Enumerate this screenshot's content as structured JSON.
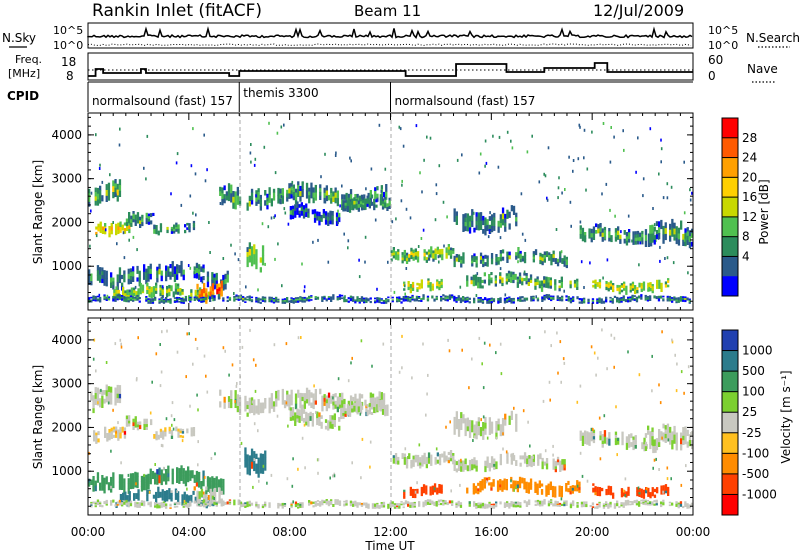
{
  "header": {
    "station": "Rankin Inlet (fitACF)",
    "beam": "Beam 11",
    "date": "12/Jul/2009"
  },
  "nsky": {
    "label": "N.Sky",
    "right_label": "N.Search",
    "left_ticks": [
      "10^5",
      "10^0"
    ],
    "right_ticks": [
      "10^5",
      "10^0"
    ]
  },
  "freq": {
    "label_line1": "Freq.",
    "label_line2": "[MHz]",
    "left_ticks": [
      "18",
      "8"
    ],
    "right_ticks": [
      "60",
      "0"
    ],
    "right_label": "Nave"
  },
  "cpid": {
    "label": "CPID",
    "segments": [
      {
        "start_h": 0,
        "end_h": 6,
        "name": "normalsound (fast) 157"
      },
      {
        "start_h": 6,
        "end_h": 12,
        "name": "themis 3300"
      },
      {
        "start_h": 12,
        "end_h": 24,
        "name": "normalsound (fast) 157"
      }
    ]
  },
  "xaxis": {
    "label": "Time UT",
    "ticks": [
      "00:00",
      "04:00",
      "08:00",
      "12:00",
      "16:00",
      "20:00",
      "00:00"
    ]
  },
  "power_panel": {
    "ylabel": "Slant Range [km]",
    "yticks": [
      "4000",
      "3000",
      "2000",
      "1000"
    ],
    "colorbar_label": "Power [dB]",
    "colorbar_ticks": [
      "28",
      "24",
      "20",
      "16",
      "12",
      "8",
      "4"
    ],
    "colorbar_colors": [
      "#ff0000",
      "#ff5a00",
      "#ffa000",
      "#ffd000",
      "#c8d800",
      "#50c050",
      "#2c8c5c",
      "#2a5a8a",
      "#0000ff"
    ]
  },
  "velocity_panel": {
    "ylabel": "Slant Range [km]",
    "yticks": [
      "4000",
      "3000",
      "2000",
      "1000"
    ],
    "colorbar_label": "Velocity [m s⁻¹]",
    "colorbar_ticks": [
      "1000",
      "500",
      "100",
      "25",
      "-25",
      "-100",
      "-500",
      "-1000"
    ],
    "colorbar_colors": [
      "#2040b0",
      "#2c7c8c",
      "#3c9c5c",
      "#7cd030",
      "#c8c8c0",
      "#ffc020",
      "#ff8c00",
      "#ff4000",
      "#ff0000"
    ]
  },
  "chart_data": {
    "type": "heatmap",
    "x_unit": "hours UT",
    "xlim": [
      0,
      24
    ],
    "ylim": [
      0,
      4500
    ],
    "echo_bands": [
      {
        "t0": 0,
        "t1": 1.3,
        "r_center": 2700,
        "r_width": 400,
        "power_dB": 16,
        "velocity": 25
      },
      {
        "t0": 0.2,
        "t1": 1.6,
        "r_center": 1800,
        "r_width": 250,
        "power_dB": 22,
        "velocity": -25
      },
      {
        "t0": 1.5,
        "t1": 2.6,
        "r_center": 2100,
        "r_width": 250,
        "power_dB": 14,
        "velocity": 25
      },
      {
        "t0": 2.5,
        "t1": 4.2,
        "r_center": 1850,
        "r_width": 200,
        "power_dB": 14,
        "velocity": -25
      },
      {
        "t0": 0,
        "t1": 5.5,
        "r_center": 800,
        "r_width": 350,
        "power_dB": 12,
        "velocity": 100
      },
      {
        "t0": 1,
        "t1": 5,
        "r_center": 400,
        "r_width": 250,
        "power_dB": 18,
        "velocity": 500
      },
      {
        "t0": 4.3,
        "t1": 5.3,
        "r_center": 450,
        "r_width": 350,
        "power_dB": 28,
        "velocity": 25
      },
      {
        "t0": 5.2,
        "t1": 6.0,
        "r_center": 2500,
        "r_width": 400,
        "power_dB": 14,
        "velocity": 25
      },
      {
        "t0": 6.2,
        "t1": 7.0,
        "r_center": 1300,
        "r_width": 450,
        "power_dB": 18,
        "velocity": 500
      },
      {
        "t0": 6.2,
        "t1": 11.8,
        "r_center": 2600,
        "r_width": 350,
        "power_dB": 14,
        "velocity": 25
      },
      {
        "t0": 8.0,
        "t1": 10.0,
        "r_center": 2200,
        "r_width": 300,
        "power_dB": 10,
        "velocity": 25
      },
      {
        "t0": 10.0,
        "t1": 12.0,
        "r_center": 2400,
        "r_width": 250,
        "power_dB": 14,
        "velocity": 25
      },
      {
        "t0": 12.0,
        "t1": 14.5,
        "r_center": 1300,
        "r_width": 250,
        "power_dB": 18,
        "velocity": 25
      },
      {
        "t0": 12.5,
        "t1": 14.0,
        "r_center": 550,
        "r_width": 200,
        "power_dB": 20,
        "velocity": -500
      },
      {
        "t0": 14.5,
        "t1": 17.0,
        "r_center": 2100,
        "r_width": 400,
        "power_dB": 12,
        "velocity": 25
      },
      {
        "t0": 14.5,
        "t1": 19.0,
        "r_center": 1200,
        "r_width": 250,
        "power_dB": 14,
        "velocity": 25
      },
      {
        "t0": 15.0,
        "t1": 19.5,
        "r_center": 650,
        "r_width": 250,
        "power_dB": 16,
        "velocity": -100
      },
      {
        "t0": 19.5,
        "t1": 22.5,
        "r_center": 1700,
        "r_width": 300,
        "power_dB": 14,
        "velocity": 25
      },
      {
        "t0": 20.0,
        "t1": 23.0,
        "r_center": 550,
        "r_width": 200,
        "power_dB": 20,
        "velocity": -500
      },
      {
        "t0": 22.0,
        "t1": 24.0,
        "r_center": 1700,
        "r_width": 400,
        "power_dB": 14,
        "velocity": 25
      },
      {
        "t0": 0,
        "t1": 24,
        "r_center": 250,
        "r_width": 120,
        "power_dB": 12,
        "velocity": 25
      }
    ]
  }
}
